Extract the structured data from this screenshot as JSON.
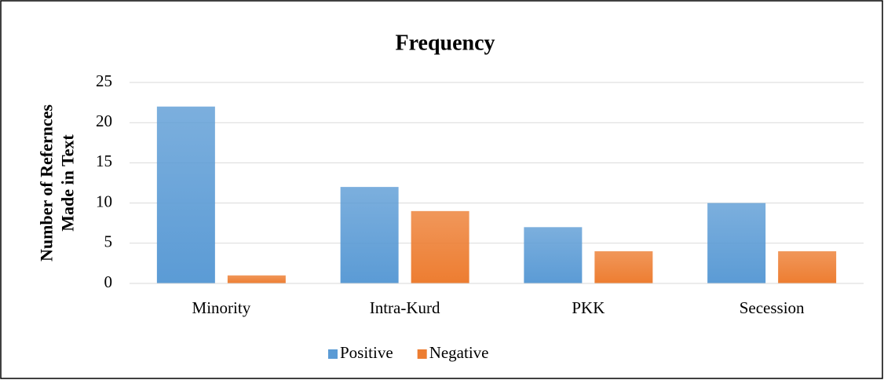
{
  "chart_data": {
    "type": "bar",
    "title": "Frequency",
    "ylabel": [
      "Number of Refernces",
      "Made in Text"
    ],
    "categories": [
      "Minority",
      "Intra-Kurd",
      "PKK",
      "Secession"
    ],
    "series": [
      {
        "name": "Positive",
        "color": "#5b9bd5",
        "values": [
          22,
          12,
          7,
          10
        ]
      },
      {
        "name": "Negative",
        "color": "#ed7d31",
        "values": [
          1,
          9,
          4,
          4
        ]
      }
    ],
    "ylim": [
      0,
      25
    ],
    "yticks": [
      0,
      5,
      10,
      15,
      20,
      25
    ],
    "grid": true,
    "legend": "bottom"
  }
}
